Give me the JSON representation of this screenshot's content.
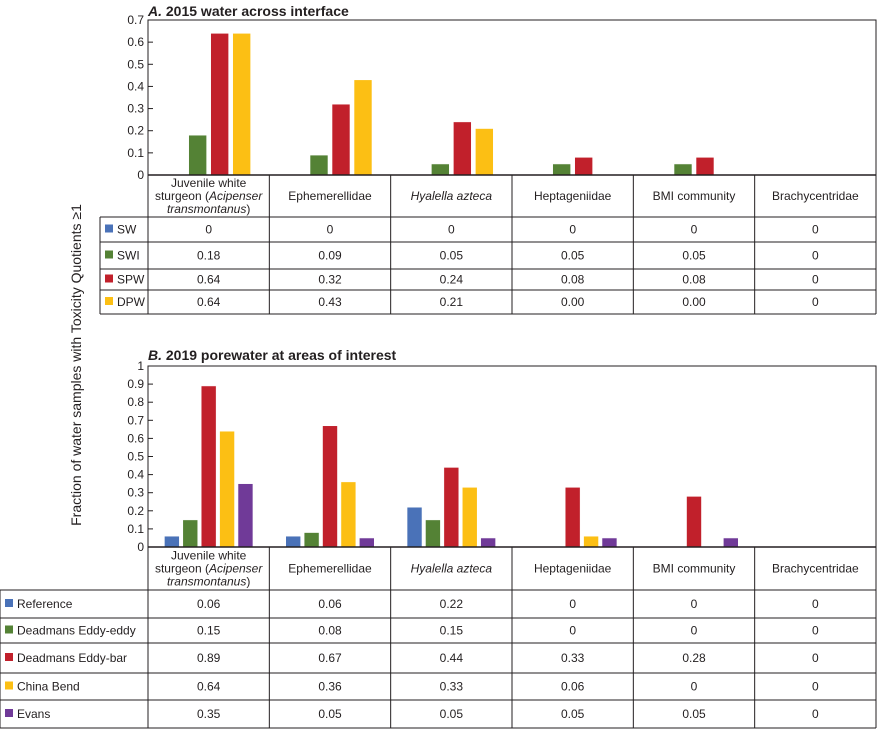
{
  "ylabel": "Fraction of water samples with Toxicity Quotients ≥1",
  "categories": [
    "Juvenile white sturgeon (Acipenser transmontanus)",
    "Ephemerellidae",
    "Hyalella azteca",
    "Heptageniidae",
    "BMI community",
    "Brachycentridae"
  ],
  "chart_data": [
    {
      "type": "bar",
      "panel": "A.",
      "title": "2015 water across interface",
      "ylim": [
        0,
        0.7
      ],
      "yticks": [
        "0",
        "0.1",
        "0.2",
        "0.3",
        "0.4",
        "0.5",
        "0.6",
        "0.7"
      ],
      "grid": false,
      "legend": "table-left",
      "series": [
        {
          "name": "SW",
          "color": "#4a72b8",
          "values": [
            0,
            0,
            0,
            0,
            0,
            0
          ],
          "labels": [
            "0",
            "0",
            "0",
            "0",
            "0",
            "0"
          ]
        },
        {
          "name": "SWI",
          "color": "#548235",
          "values": [
            0.18,
            0.09,
            0.05,
            0.05,
            0.05,
            0
          ],
          "labels": [
            "0.18",
            "0.09",
            "0.05",
            "0.05",
            "0.05",
            "0"
          ]
        },
        {
          "name": "SPW",
          "color": "#c1202b",
          "values": [
            0.64,
            0.32,
            0.24,
            0.08,
            0.08,
            0
          ],
          "labels": [
            "0.64",
            "0.32",
            "0.24",
            "0.08",
            "0.08",
            "0"
          ]
        },
        {
          "name": "DPW",
          "color": "#fcbf14",
          "values": [
            0.64,
            0.43,
            0.21,
            0.0,
            0.0,
            0
          ],
          "labels": [
            "0.64",
            "0.43",
            "0.21",
            "0.00",
            "0.00",
            "0"
          ]
        }
      ]
    },
    {
      "type": "bar",
      "panel": "B.",
      "title": "2019 porewater at areas of interest",
      "ylim": [
        0,
        1
      ],
      "yticks": [
        "0",
        "0.1",
        "0.2",
        "0.3",
        "0.4",
        "0.5",
        "0.6",
        "0.7",
        "0.8",
        "0.9",
        "1"
      ],
      "grid": false,
      "legend": "table-left",
      "series": [
        {
          "name": "Reference",
          "color": "#4a72b8",
          "values": [
            0.06,
            0.06,
            0.22,
            0,
            0,
            0
          ],
          "labels": [
            "0.06",
            "0.06",
            "0.22",
            "0",
            "0",
            "0"
          ]
        },
        {
          "name": "Deadmans Eddy-eddy",
          "color": "#548235",
          "values": [
            0.15,
            0.08,
            0.15,
            0,
            0,
            0
          ],
          "labels": [
            "0.15",
            "0.08",
            "0.15",
            "0",
            "0",
            "0"
          ]
        },
        {
          "name": "Deadmans Eddy-bar",
          "color": "#c1202b",
          "values": [
            0.89,
            0.67,
            0.44,
            0.33,
            0.28,
            0
          ],
          "labels": [
            "0.89",
            "0.67",
            "0.44",
            "0.33",
            "0.28",
            "0"
          ]
        },
        {
          "name": "China Bend",
          "color": "#fcbf14",
          "values": [
            0.64,
            0.36,
            0.33,
            0.06,
            0,
            0
          ],
          "labels": [
            "0.64",
            "0.36",
            "0.33",
            "0.06",
            "0",
            "0"
          ]
        },
        {
          "name": "Evans",
          "color": "#703a98",
          "values": [
            0.35,
            0.05,
            0.05,
            0.05,
            0.05,
            0
          ],
          "labels": [
            "0.35",
            "0.05",
            "0.05",
            "0.05",
            "0.05",
            "0"
          ]
        }
      ]
    }
  ]
}
